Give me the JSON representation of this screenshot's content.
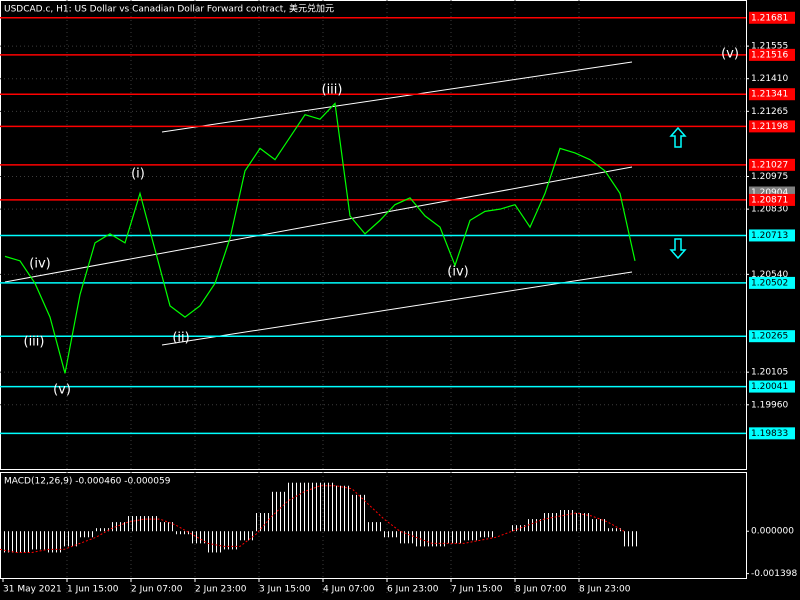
{
  "chart_data": {
    "type": "line",
    "title": "USDCAD.c, H1:  US Dollar vs Canadian Dollar Forward contract, 美元兑加元",
    "x_labels": [
      "31 May 2021",
      "1 Jun 15:00",
      "2 Jun 07:00",
      "2 Jun 23:00",
      "3 Jun 15:00",
      "4 Jun 07:00",
      "6 Jun 23:00",
      "7 Jun 15:00",
      "8 Jun 07:00",
      "8 Jun 23:00"
    ],
    "series": [
      {
        "name": "USDCAD.c",
        "color": "#00ff00",
        "values": [
          1.2062,
          1.206,
          1.205,
          1.2035,
          1.201,
          1.2045,
          1.2068,
          1.2072,
          1.2068,
          1.209,
          1.2065,
          1.204,
          1.2035,
          1.204,
          1.205,
          1.207,
          1.21,
          1.211,
          1.2105,
          1.2115,
          1.2125,
          1.2123,
          1.213,
          1.208,
          1.2072,
          1.2078,
          1.2085,
          1.2088,
          1.208,
          1.2075,
          1.2058,
          1.2078,
          1.2082,
          1.2083,
          1.2085,
          1.2075,
          1.209,
          1.211,
          1.2108,
          1.2105,
          1.21,
          1.209,
          1.206
        ]
      }
    ],
    "ylim": [
      1.1967,
      1.2176
    ],
    "yticks": [
      {
        "value": 1.21555,
        "label": "1.21555"
      },
      {
        "value": 1.2141,
        "label": "1.21410"
      },
      {
        "value": 1.21265,
        "label": "1.21265"
      },
      {
        "value": 1.20975,
        "label": "1.20975"
      },
      {
        "value": 1.2083,
        "label": "1.20830"
      },
      {
        "value": 1.2054,
        "label": "1.20540"
      },
      {
        "value": 1.20105,
        "label": "1.20105"
      },
      {
        "value": 1.1996,
        "label": "1.19960"
      }
    ],
    "levels": [
      {
        "value": 1.21681,
        "color": "#ff0000",
        "line": true
      },
      {
        "value": 1.21516,
        "color": "#ff0000",
        "line": true
      },
      {
        "value": 1.21341,
        "color": "#ff0000",
        "line": true
      },
      {
        "value": 1.21198,
        "color": "#ff0000",
        "line": true
      },
      {
        "value": 1.21027,
        "color": "#ff0000",
        "line": true
      },
      {
        "value": 1.20904,
        "color": "#808080",
        "line": false
      },
      {
        "value": 1.20871,
        "color": "#ff0000",
        "line": true
      },
      {
        "value": 1.20713,
        "color": "#00ffff",
        "line": true
      },
      {
        "value": 1.20502,
        "color": "#00ffff",
        "line": true
      },
      {
        "value": 1.20265,
        "color": "#00ffff",
        "line": true
      },
      {
        "value": 1.20041,
        "color": "#00ffff",
        "line": true
      },
      {
        "value": 1.19833,
        "color": "#00ffff",
        "line": true
      }
    ],
    "wave_labels": [
      "(v)",
      "(iii)",
      "(i)",
      "(iv)",
      "(iii)",
      "(v)",
      "(ii)",
      "(iv)"
    ],
    "grid": true,
    "macd": {
      "label": "MACD(12,26,9) -0.000460 -0.000059",
      "ylim": [
        -0.00207,
        0.00192
      ],
      "yticks": [
        {
          "value": 0,
          "label": "0.000000"
        },
        {
          "value": -0.001398,
          "label": "-0.001398"
        }
      ],
      "histogram": [
        -0.0007,
        -0.0007,
        -0.0006,
        -0.0007,
        -0.0005,
        -0.0002,
        0.0001,
        0.0003,
        0.0005,
        0.0005,
        0.0003,
        -0.0001,
        -0.0004,
        -0.0007,
        -0.0006,
        -0.0003,
        0.0006,
        0.0013,
        0.0016,
        0.0016,
        0.0016,
        0.0015,
        0.0012,
        0.0003,
        -0.0002,
        -0.0004,
        -0.0005,
        -0.0005,
        -0.0004,
        -0.0003,
        -0.0002,
        0,
        0.0002,
        0.0004,
        0.0006,
        0.0007,
        0.0006,
        0.0004,
        0.0001,
        -0.0005
      ],
      "signal": [
        -0.0006,
        -0.0007,
        -0.0007,
        -0.0006,
        -0.0006,
        -0.0004,
        -0.0002,
        0.0001,
        0.0003,
        0.0004,
        0.0004,
        0.0002,
        -0.0001,
        -0.0004,
        -0.0005,
        -0.0005,
        -0.0001,
        0.0005,
        0.001,
        0.0013,
        0.0015,
        0.0015,
        0.0014,
        0.0009,
        0.0004,
        0,
        -0.0002,
        -0.0004,
        -0.0004,
        -0.0004,
        -0.0003,
        -0.0002,
        0,
        0.0002,
        0.0004,
        0.0005,
        0.0006,
        0.0005,
        0.0003,
        0
      ],
      "histogram_color": "#ffffff",
      "signal_color": "#ff0000"
    }
  }
}
